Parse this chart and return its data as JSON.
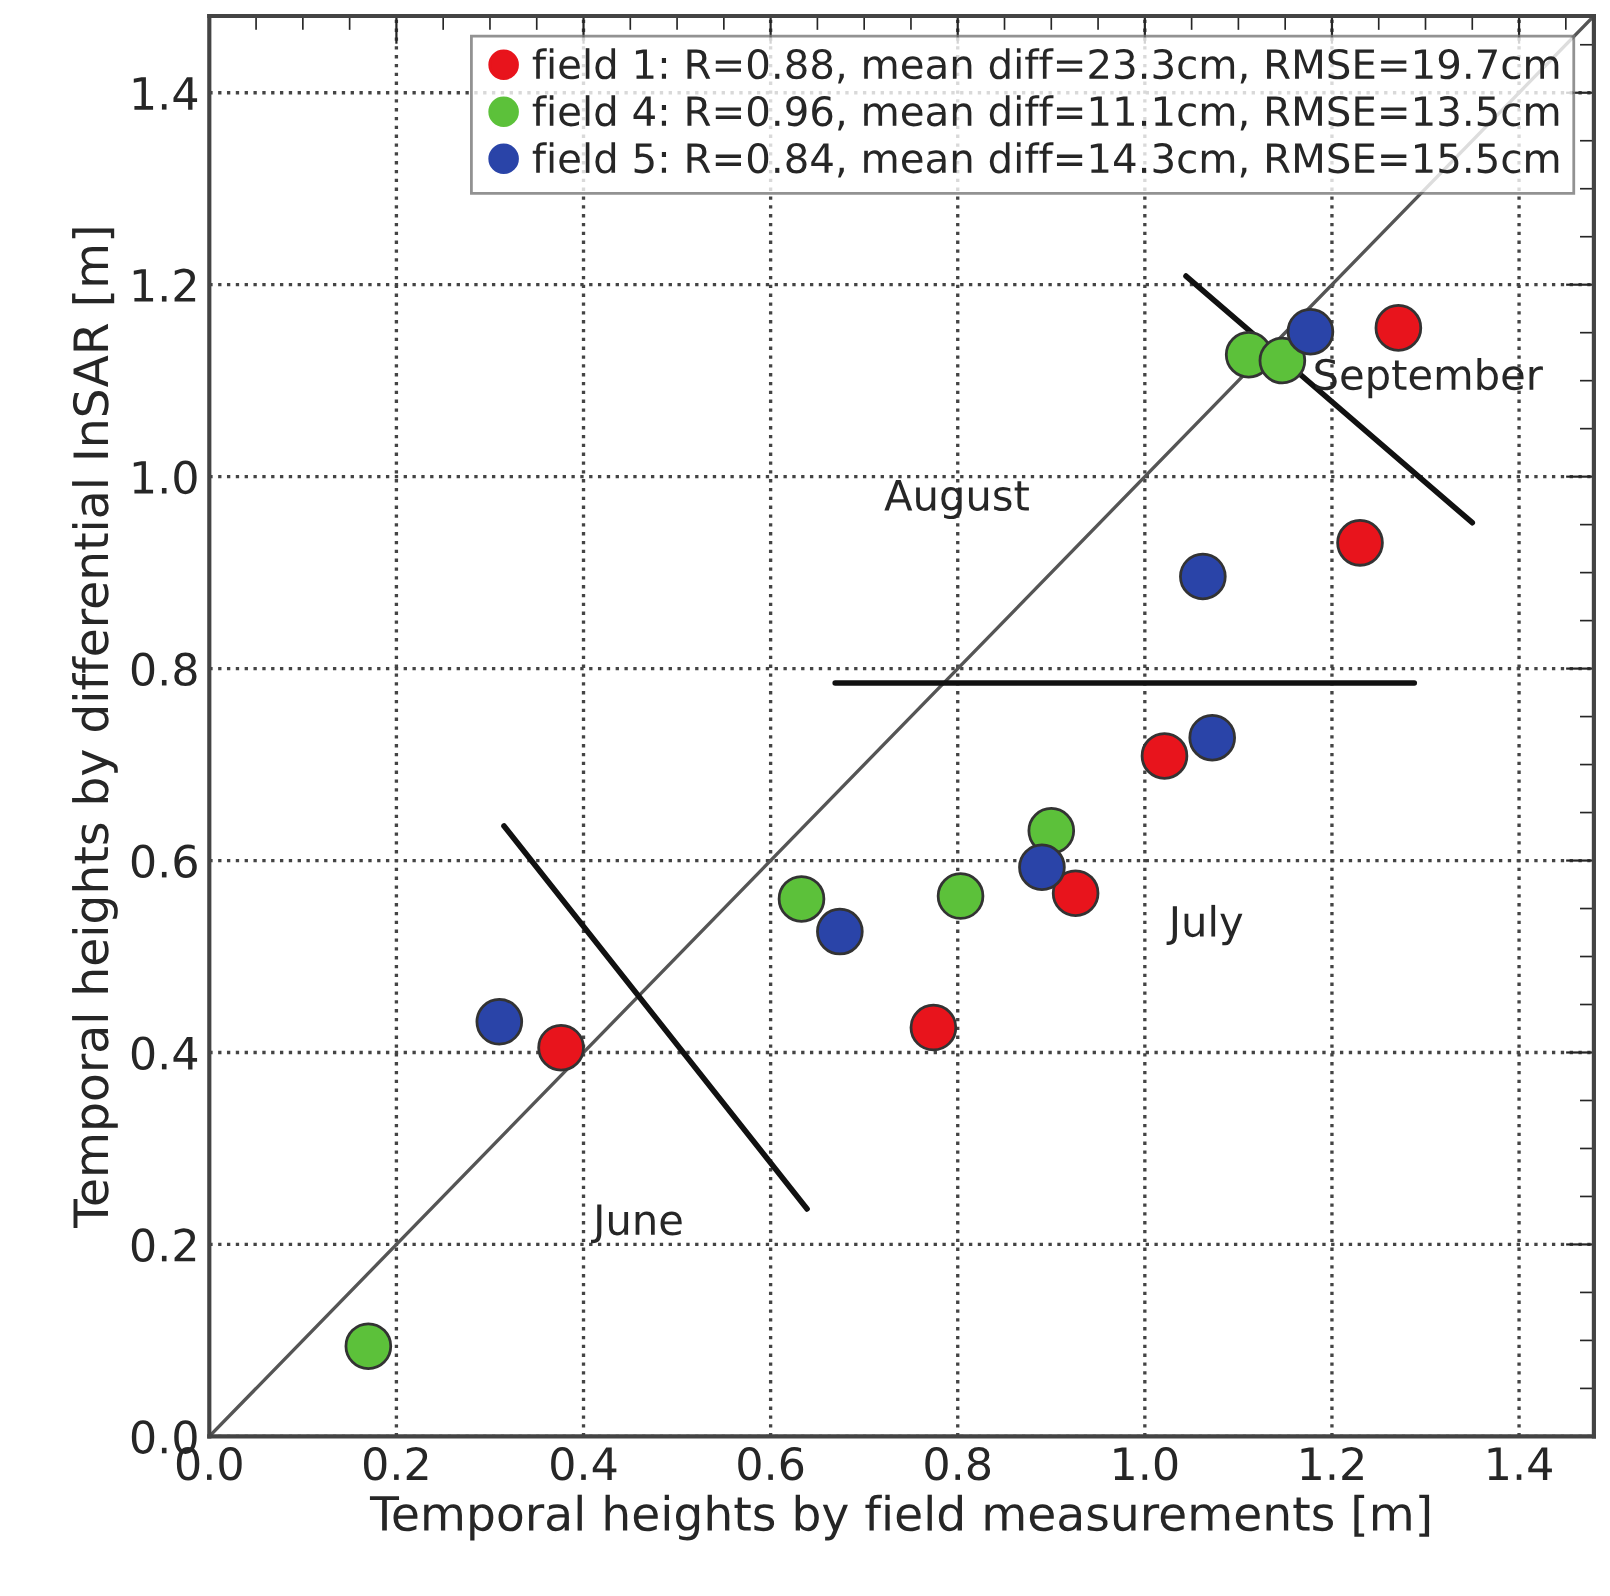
{
  "chart_data": {
    "type": "scatter",
    "xlabel": "Temporal heights by field measurements [m]",
    "ylabel": "Temporal heights by differential InSAR [m]",
    "xlim": [
      0,
      1.48
    ],
    "ylim": [
      0,
      1.48
    ],
    "xticks": [
      {
        "value": 0,
        "label": "0.0"
      },
      0.2,
      0.4,
      0.6,
      0.8,
      {
        "value": 1,
        "label": "1.0"
      },
      1.2,
      1.4
    ],
    "yticks": [
      {
        "value": 0,
        "label": "0.0"
      },
      0.2,
      0.4,
      0.6,
      0.8,
      {
        "value": 1,
        "label": "1.0"
      },
      1.2,
      1.4
    ],
    "grid": true,
    "legend": "top right",
    "marker": "circle",
    "series": [
      {
        "type": "line",
        "marker": "none",
        "color": "#555555",
        "x": [
          0,
          1.48
        ],
        "values": [
          0,
          1.48
        ]
      },
      {
        "type": "line",
        "marker": "none",
        "color": "#111111",
        "x": [
          0.315,
          0.639
        ],
        "values": [
          0.636,
          0.237
        ]
      },
      {
        "type": "line",
        "marker": "none",
        "color": "#111111",
        "x": [
          0.669,
          1.288
        ],
        "values": [
          0.785,
          0.785
        ]
      },
      {
        "type": "line",
        "marker": "none",
        "color": "#111111",
        "x": [
          1.044,
          1.35
        ],
        "values": [
          1.209,
          0.952
        ]
      },
      {
        "name": "field 1: R=0.88, mean diff=23.3cm, RMSE=19.7cm",
        "color": "#e8141c",
        "x": [
          0.376,
          0.774,
          0.926,
          1.021,
          1.23,
          1.271
        ],
        "values": [
          0.405,
          0.426,
          0.566,
          0.709,
          0.931,
          1.155
        ]
      },
      {
        "name": "field 4: R=0.96, mean diff=11.1cm, RMSE=13.5cm",
        "color": "#5cc13a",
        "x": [
          0.17,
          0.633,
          0.803,
          0.9,
          1.111,
          1.147
        ],
        "values": [
          0.094,
          0.56,
          0.563,
          0.631,
          1.127,
          1.121
        ]
      },
      {
        "name": "field 5: R=0.84, mean diff=14.3cm, RMSE=15.5cm",
        "color": "#2a44a8",
        "x": [
          0.31,
          0.674,
          0.89,
          1.062,
          1.072,
          1.177
        ],
        "values": [
          0.432,
          0.526,
          0.593,
          0.896,
          0.728,
          1.151
        ]
      }
    ],
    "annotations": [
      "June",
      "July",
      "August",
      "September"
    ]
  }
}
